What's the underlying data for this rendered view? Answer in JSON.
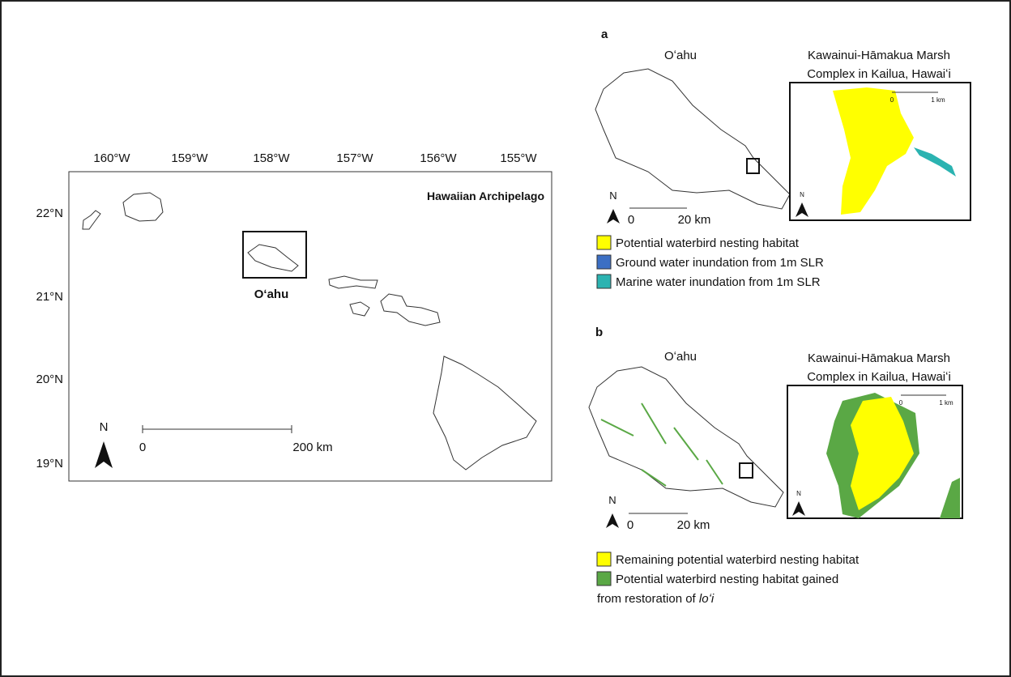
{
  "map": {
    "title": "Hawaiian Archipelago",
    "longitude_labels": [
      "160°W",
      "159°W",
      "158°W",
      "157°W",
      "156°W",
      "155°W"
    ],
    "latitude_labels": [
      "22°N",
      "21°N",
      "20°N",
      "19°N"
    ],
    "inset_label": "Oʻahu",
    "scale_bar": {
      "start": "0",
      "end": "200 km"
    },
    "north": "N"
  },
  "panel_a": {
    "label": "a",
    "island_title": "Oʻahu",
    "inset_title": [
      "Kawainui-Hāmakua Marsh",
      "Complex in Kailua, Hawaiʻi"
    ],
    "scale_bar": {
      "start": "0",
      "end": "20 km"
    },
    "inset_scale_bar": {
      "start": "0",
      "end": "1 km"
    },
    "north": "N",
    "inset_north": "N",
    "legend": [
      {
        "label": "Potential waterbird nesting habitat",
        "color": "#ffff00"
      },
      {
        "label": "Ground water inundation from 1m SLR",
        "color": "#3c6fc4"
      },
      {
        "label": "Marine water inundation from 1m SLR",
        "color": "#2bb3b1"
      }
    ]
  },
  "panel_b": {
    "label": "b",
    "island_title": "Oʻahu",
    "inset_title": [
      "Kawainui-Hāmakua Marsh",
      "Complex in Kailua, Hawaiʻi"
    ],
    "scale_bar": {
      "start": "0",
      "end": "20 km"
    },
    "inset_scale_bar": {
      "start": "0",
      "end": "1 km"
    },
    "north": "N",
    "inset_north": "N",
    "legend": [
      {
        "label": "Remaining potential waterbird nesting habitat",
        "color": "#ffff00"
      },
      {
        "label": [
          "Potential waterbird nesting habitat gained",
          "from restoration of ",
          "loʻi"
        ],
        "color": "#5aa845"
      }
    ]
  }
}
